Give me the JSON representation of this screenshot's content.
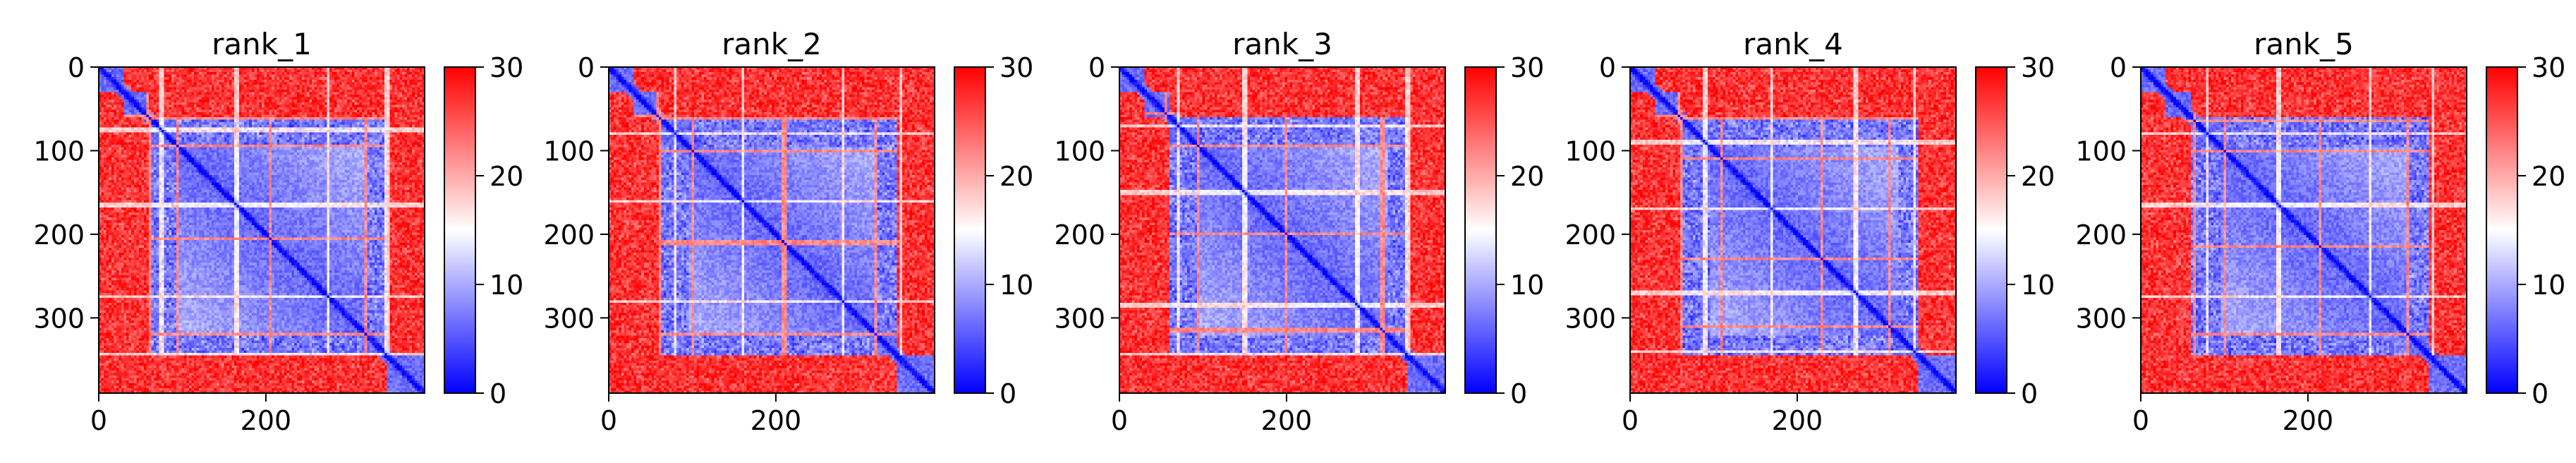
{
  "chart_data": [
    {
      "type": "heatmap",
      "title": "rank_1",
      "matrix_size": 390,
      "xlim": [
        0,
        390
      ],
      "ylim": [
        390,
        0
      ],
      "xticks": [
        0,
        200
      ],
      "yticks": [
        0,
        100,
        200,
        300
      ],
      "colorbar": {
        "min": 0,
        "max": 30,
        "ticks": [
          0,
          10,
          20,
          30
        ],
        "colormap": "bwr"
      },
      "blocks": [
        [
          0,
          30
        ],
        [
          30,
          60
        ],
        [
          60,
          95
        ],
        [
          95,
          320
        ],
        [
          320,
          345
        ],
        [
          345,
          390
        ]
      ],
      "stripes": [
        60,
        75,
        95,
        165,
        205,
        275,
        320,
        345
      ]
    },
    {
      "type": "heatmap",
      "title": "rank_2",
      "matrix_size": 390,
      "xlim": [
        0,
        390
      ],
      "ylim": [
        390,
        0
      ],
      "xticks": [
        0,
        200
      ],
      "yticks": [
        0,
        100,
        200,
        300
      ],
      "colorbar": {
        "min": 0,
        "max": 30,
        "ticks": [
          0,
          10,
          20,
          30
        ],
        "colormap": "bwr"
      },
      "blocks": [
        [
          0,
          30
        ],
        [
          30,
          60
        ],
        [
          60,
          95
        ],
        [
          95,
          320
        ],
        [
          320,
          345
        ],
        [
          345,
          390
        ]
      ],
      "stripes": [
        60,
        80,
        100,
        160,
        210,
        280,
        320,
        350
      ]
    },
    {
      "type": "heatmap",
      "title": "rank_3",
      "matrix_size": 390,
      "xlim": [
        0,
        390
      ],
      "ylim": [
        390,
        0
      ],
      "xticks": [
        0,
        200
      ],
      "yticks": [
        0,
        100,
        200,
        300
      ],
      "colorbar": {
        "min": 0,
        "max": 30,
        "ticks": [
          0,
          10,
          20,
          30
        ],
        "colormap": "bwr"
      },
      "blocks": [
        [
          0,
          30
        ],
        [
          30,
          60
        ],
        [
          60,
          95
        ],
        [
          95,
          320
        ],
        [
          320,
          345
        ],
        [
          345,
          390
        ]
      ],
      "stripes": [
        55,
        70,
        95,
        150,
        200,
        285,
        315,
        345
      ]
    },
    {
      "type": "heatmap",
      "title": "rank_4",
      "matrix_size": 390,
      "xlim": [
        0,
        390
      ],
      "ylim": [
        390,
        0
      ],
      "xticks": [
        0,
        200
      ],
      "yticks": [
        0,
        100,
        200,
        300
      ],
      "colorbar": {
        "min": 0,
        "max": 30,
        "ticks": [
          0,
          10,
          20,
          30
        ],
        "colormap": "bwr"
      },
      "blocks": [
        [
          0,
          30
        ],
        [
          30,
          60
        ],
        [
          60,
          95
        ],
        [
          95,
          320
        ],
        [
          320,
          345
        ],
        [
          345,
          390
        ]
      ],
      "stripes": [
        60,
        90,
        110,
        170,
        230,
        270,
        310,
        340
      ]
    },
    {
      "type": "heatmap",
      "title": "rank_5",
      "matrix_size": 390,
      "xlim": [
        0,
        390
      ],
      "ylim": [
        390,
        0
      ],
      "xticks": [
        0,
        200
      ],
      "yticks": [
        0,
        100,
        200,
        300
      ],
      "colorbar": {
        "min": 0,
        "max": 30,
        "ticks": [
          0,
          10,
          20,
          30
        ],
        "colormap": "bwr"
      },
      "blocks": [
        [
          0,
          30
        ],
        [
          30,
          60
        ],
        [
          60,
          95
        ],
        [
          95,
          320
        ],
        [
          320,
          345
        ],
        [
          345,
          390
        ]
      ],
      "stripes": [
        65,
        80,
        100,
        165,
        215,
        275,
        320,
        350
      ]
    }
  ],
  "colors": {
    "low": "#0000ff",
    "mid": "#ffffff",
    "high": "#ff0000",
    "axis": "#000000",
    "background": "#ffffff"
  }
}
